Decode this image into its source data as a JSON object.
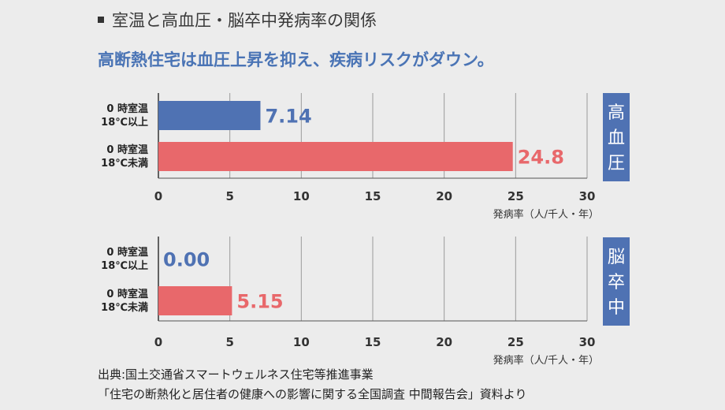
{
  "header": {
    "title": "室温と高血圧・脳卒中発病率の関係",
    "subtitle": "高断熱住宅は血圧上昇を抑え、疾病リスクがダウン。"
  },
  "colors": {
    "blue": "#4f72b3",
    "red": "#e8686b",
    "badge": "#4f72b3",
    "grid": "#9a9a9a"
  },
  "chart_data": [
    {
      "type": "bar",
      "orientation": "horizontal",
      "panel_label": "高血圧",
      "categories": [
        [
          "0 時室温",
          "18℃以上"
        ],
        [
          "0 時室温",
          "18℃未満"
        ]
      ],
      "values": [
        7.14,
        24.8
      ],
      "value_labels": [
        "7.14",
        "24.8"
      ],
      "xlim": [
        0,
        30
      ],
      "x_ticks": [
        0,
        5,
        10,
        15,
        20,
        25,
        30
      ],
      "xlabel": "発病率（人/千人・年）",
      "grid": true
    },
    {
      "type": "bar",
      "orientation": "horizontal",
      "panel_label": "脳卒中",
      "categories": [
        [
          "0 時室温",
          "18℃以上"
        ],
        [
          "0 時室温",
          "18℃未満"
        ]
      ],
      "values": [
        0.0,
        5.15
      ],
      "value_labels": [
        "0.00",
        "5.15"
      ],
      "xlim": [
        0,
        30
      ],
      "x_ticks": [
        0,
        5,
        10,
        15,
        20,
        25,
        30
      ],
      "xlabel": "発病率（人/千人・年）",
      "grid": true
    }
  ],
  "source": {
    "line1": "出典:国土交通省スマートウェルネス住宅等推進事業",
    "line2": "「住宅の断熱化と居住者の健康への影響に関する全国調査 中間報告会」資料より"
  }
}
